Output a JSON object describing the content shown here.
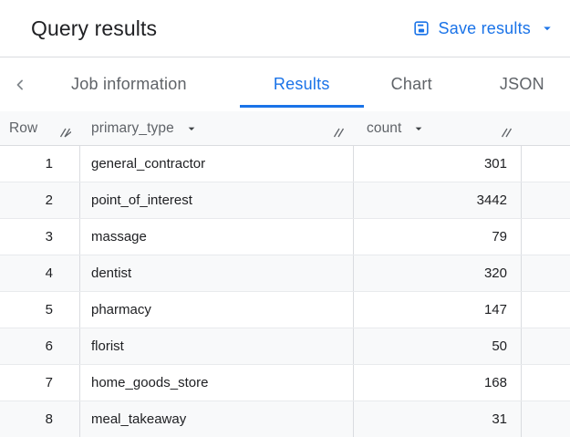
{
  "colors": {
    "accent_blue": "#1a73e8",
    "title_text": "#202124",
    "tab_inactive_text": "#5f6368",
    "header_bg": "#f8f9fa",
    "row_alt_bg": "#f8f9fa",
    "grid_line_vertical": "#dadce0",
    "grid_line_horizontal": "#e8eaed"
  },
  "icons": {
    "save": "save-icon",
    "save_dropdown": "arrow-drop-down-icon",
    "tabs_back": "chevron-left-icon",
    "column_sort": "sort-caret-icon",
    "column_resize": "column-resize-icon"
  },
  "header": {
    "title": "Query results",
    "save_results_label": "Save results"
  },
  "tab_bar": {
    "tabs": [
      {
        "label": "Job information",
        "active": false
      },
      {
        "label": "Results",
        "active": true
      },
      {
        "label": "Chart",
        "active": false
      },
      {
        "label": "JSON",
        "active": false
      }
    ]
  },
  "table": {
    "columns": [
      {
        "label": "Row",
        "sortable": false,
        "resizable": true
      },
      {
        "label": "primary_type",
        "sortable": true,
        "resizable": true
      },
      {
        "label": "count",
        "sortable": true,
        "resizable": true
      }
    ],
    "rows": [
      {
        "row": "1",
        "primary_type": "general_contractor",
        "count": "301"
      },
      {
        "row": "2",
        "primary_type": "point_of_interest",
        "count": "3442"
      },
      {
        "row": "3",
        "primary_type": "massage",
        "count": "79"
      },
      {
        "row": "4",
        "primary_type": "dentist",
        "count": "320"
      },
      {
        "row": "5",
        "primary_type": "pharmacy",
        "count": "147"
      },
      {
        "row": "6",
        "primary_type": "florist",
        "count": "50"
      },
      {
        "row": "7",
        "primary_type": "home_goods_store",
        "count": "168"
      },
      {
        "row": "8",
        "primary_type": "meal_takeaway",
        "count": "31"
      }
    ]
  }
}
